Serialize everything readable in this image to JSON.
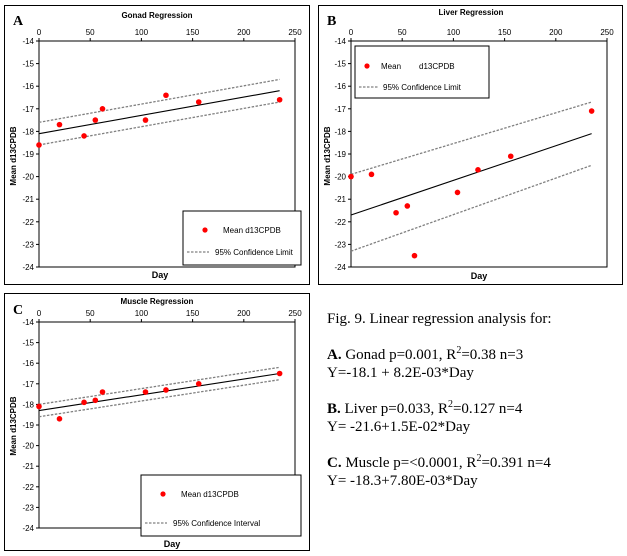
{
  "colors": {
    "point": "#ff0000",
    "line": "#000000",
    "ci": "#808080",
    "frame": "#000000"
  },
  "chart_data": [
    {
      "type": "scatter",
      "panel_letter": "A",
      "title": "Gonad Regression",
      "xlabel": "Day",
      "ylabel": "Mean d13CPDB",
      "xlim": [
        0,
        250
      ],
      "ylim": [
        -24,
        -14
      ],
      "x_ticks": [
        "0",
        "50",
        "100",
        "150",
        "200",
        "250"
      ],
      "x_tick_values": [
        0,
        50,
        100,
        150,
        200,
        250
      ],
      "y_ticks": [
        "-14",
        "-15",
        "-16",
        "-17",
        "-18",
        "-19",
        "-20",
        "-21",
        "-22",
        "-23",
        "-24"
      ],
      "y_tick_values": [
        -14,
        -15,
        -16,
        -17,
        -18,
        -19,
        -20,
        -21,
        -22,
        -23,
        -24
      ],
      "x_axis_position": "top",
      "grid": false,
      "legend_position": "bottom-right",
      "legend": [
        "Mean d13CPDB",
        "95% Confidence Limit"
      ],
      "series": [
        {
          "name": "Mean d13CPDB",
          "kind": "points",
          "x": [
            0,
            20,
            44,
            55,
            62,
            104,
            124,
            156,
            235
          ],
          "y": [
            -18.6,
            -17.7,
            -18.2,
            -17.5,
            -17.0,
            -17.5,
            -16.4,
            -16.7,
            -16.6
          ]
        },
        {
          "name": "regression",
          "kind": "line",
          "x": [
            0,
            235
          ],
          "y": [
            -18.1,
            -16.2
          ]
        },
        {
          "name": "95% Confidence Limit",
          "kind": "dashed",
          "x": [
            0,
            235
          ],
          "y": [
            -17.6,
            -15.7
          ]
        },
        {
          "name": "95% Confidence Limit",
          "kind": "dashed",
          "x": [
            0,
            235
          ],
          "y": [
            -18.6,
            -16.7
          ]
        }
      ]
    },
    {
      "type": "scatter",
      "panel_letter": "B",
      "title": "Liver Regression",
      "xlabel": "Day",
      "ylabel": "Mean d13CPDB",
      "xlim": [
        0,
        250
      ],
      "ylim": [
        -24,
        -14
      ],
      "x_ticks": [
        "0",
        "50",
        "100",
        "150",
        "200",
        "250"
      ],
      "x_tick_values": [
        0,
        50,
        100,
        150,
        200,
        250
      ],
      "y_ticks": [
        "-14",
        "-15",
        "-16",
        "-17",
        "-18",
        "-19",
        "-20",
        "-21",
        "-22",
        "-23",
        "-24"
      ],
      "y_tick_values": [
        -14,
        -15,
        -16,
        -17,
        -18,
        -19,
        -20,
        -21,
        -22,
        -23,
        -24
      ],
      "x_axis_position": "top",
      "grid": false,
      "legend_position": "top-left",
      "legend": [
        "Mean",
        "d13CPDB",
        "95% Confidence Limit"
      ],
      "series": [
        {
          "name": "Mean d13CPDB",
          "kind": "points",
          "x": [
            0,
            20,
            44,
            55,
            62,
            104,
            124,
            156,
            235
          ],
          "y": [
            -20.0,
            -19.9,
            -21.6,
            -21.3,
            -23.5,
            -20.7,
            -19.7,
            -19.1,
            -17.1
          ]
        },
        {
          "name": "regression",
          "kind": "line",
          "x": [
            0,
            235
          ],
          "y": [
            -21.7,
            -18.1
          ]
        },
        {
          "name": "95% Confidence Limit",
          "kind": "dashed",
          "x": [
            0,
            235
          ],
          "y": [
            -19.9,
            -16.7
          ]
        },
        {
          "name": "95% Confidence Limit",
          "kind": "dashed",
          "x": [
            0,
            235
          ],
          "y": [
            -23.3,
            -19.5
          ]
        }
      ]
    },
    {
      "type": "scatter",
      "panel_letter": "C",
      "title": "Muscle Regression",
      "xlabel": "Day",
      "ylabel": "Mean d13CPDB",
      "xlim": [
        0,
        250
      ],
      "ylim": [
        -24,
        -14
      ],
      "x_ticks": [
        "0",
        "50",
        "100",
        "150",
        "200",
        "250"
      ],
      "x_tick_values": [
        0,
        50,
        100,
        150,
        200,
        250
      ],
      "y_ticks": [
        "-14",
        "-15",
        "-16",
        "-17",
        "-18",
        "-19",
        "-20",
        "-21",
        "-22",
        "-23",
        "-24"
      ],
      "y_tick_values": [
        -14,
        -15,
        -16,
        -17,
        -18,
        -19,
        -20,
        -21,
        -22,
        -23,
        -24
      ],
      "x_axis_position": "top",
      "grid": false,
      "legend_position": "bottom-right",
      "legend": [
        "Mean d13CPDB",
        "95% Confidence Interval"
      ],
      "series": [
        {
          "name": "Mean d13CPDB",
          "kind": "points",
          "x": [
            0,
            20,
            44,
            55,
            62,
            104,
            124,
            156,
            235
          ],
          "y": [
            -18.1,
            -18.7,
            -17.9,
            -17.8,
            -17.4,
            -17.4,
            -17.3,
            -17.0,
            -16.5
          ]
        },
        {
          "name": "regression",
          "kind": "line",
          "x": [
            0,
            235
          ],
          "y": [
            -18.3,
            -16.5
          ]
        },
        {
          "name": "95% Confidence Interval",
          "kind": "dashed",
          "x": [
            0,
            235
          ],
          "y": [
            -18.0,
            -16.2
          ]
        },
        {
          "name": "95% Confidence Interval",
          "kind": "dashed",
          "x": [
            0,
            235
          ],
          "y": [
            -18.6,
            -16.8
          ]
        }
      ]
    }
  ],
  "caption": {
    "heading": "Fig. 9. Linear regression analysis for:",
    "stats": [
      {
        "label": "A.",
        "line1_pre": " Gonad p=0.001, R",
        "sup": "2",
        "line1_post": "=0.38 n=3",
        "line2": "Y=-18.1 + 8.2E-03*Day"
      },
      {
        "label": "B.",
        "line1_pre": " Liver p=0.033, R",
        "sup": "2",
        "line1_post": "=0.127 n=4",
        "line2": "Y= -21.6+1.5E-02*Day"
      },
      {
        "label": "C.",
        "line1_pre": " Muscle p=<0.0001, R",
        "sup": "2",
        "line1_post": "=0.391 n=4",
        "line2": "Y= -18.3+7.80E-03*Day"
      }
    ]
  }
}
